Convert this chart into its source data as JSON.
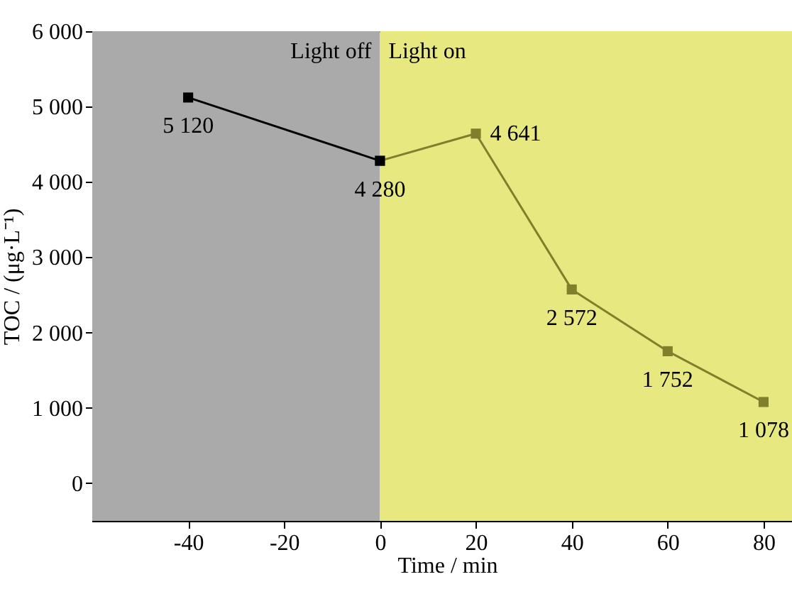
{
  "chart_data": {
    "type": "line",
    "xlabel": "Time / min",
    "ylabel": "TOC / (μg·L⁻¹)",
    "xlim": [
      -60,
      88
    ],
    "xticks": [
      -40,
      -20,
      0,
      20,
      40,
      60,
      80
    ],
    "ylim": [
      -500,
      6000
    ],
    "yticks": [
      0,
      {
        "value": 1000,
        "label": "1 000"
      },
      {
        "value": 2000,
        "label": "2 000"
      },
      {
        "value": 3000,
        "label": "3 000"
      },
      {
        "value": 4000,
        "label": "4 000"
      },
      {
        "value": 5000,
        "label": "5 000"
      },
      {
        "value": 6000,
        "label": "6 000"
      }
    ],
    "bands": [
      {
        "axis": "x",
        "from": -60,
        "to": 0,
        "label": "Light off",
        "color": "#aaaaaa"
      },
      {
        "axis": "x",
        "from": 0,
        "to": 88,
        "label": "Light on",
        "color": "#e8e880"
      }
    ],
    "series": [
      {
        "color": "#7f7f2c",
        "x": [
          0,
          20,
          40,
          60,
          80
        ],
        "values": [
          4280,
          4641,
          2572,
          1752,
          1078
        ],
        "value_labels": [
          null,
          "4 641",
          "2 572",
          "1 752",
          "1 078"
        ]
      },
      {
        "color": "#000000",
        "x": [
          -40,
          0
        ],
        "values": [
          5120,
          4280
        ],
        "value_labels": [
          "5 120",
          "4 280"
        ]
      }
    ],
    "marker": "square",
    "grid": false
  }
}
